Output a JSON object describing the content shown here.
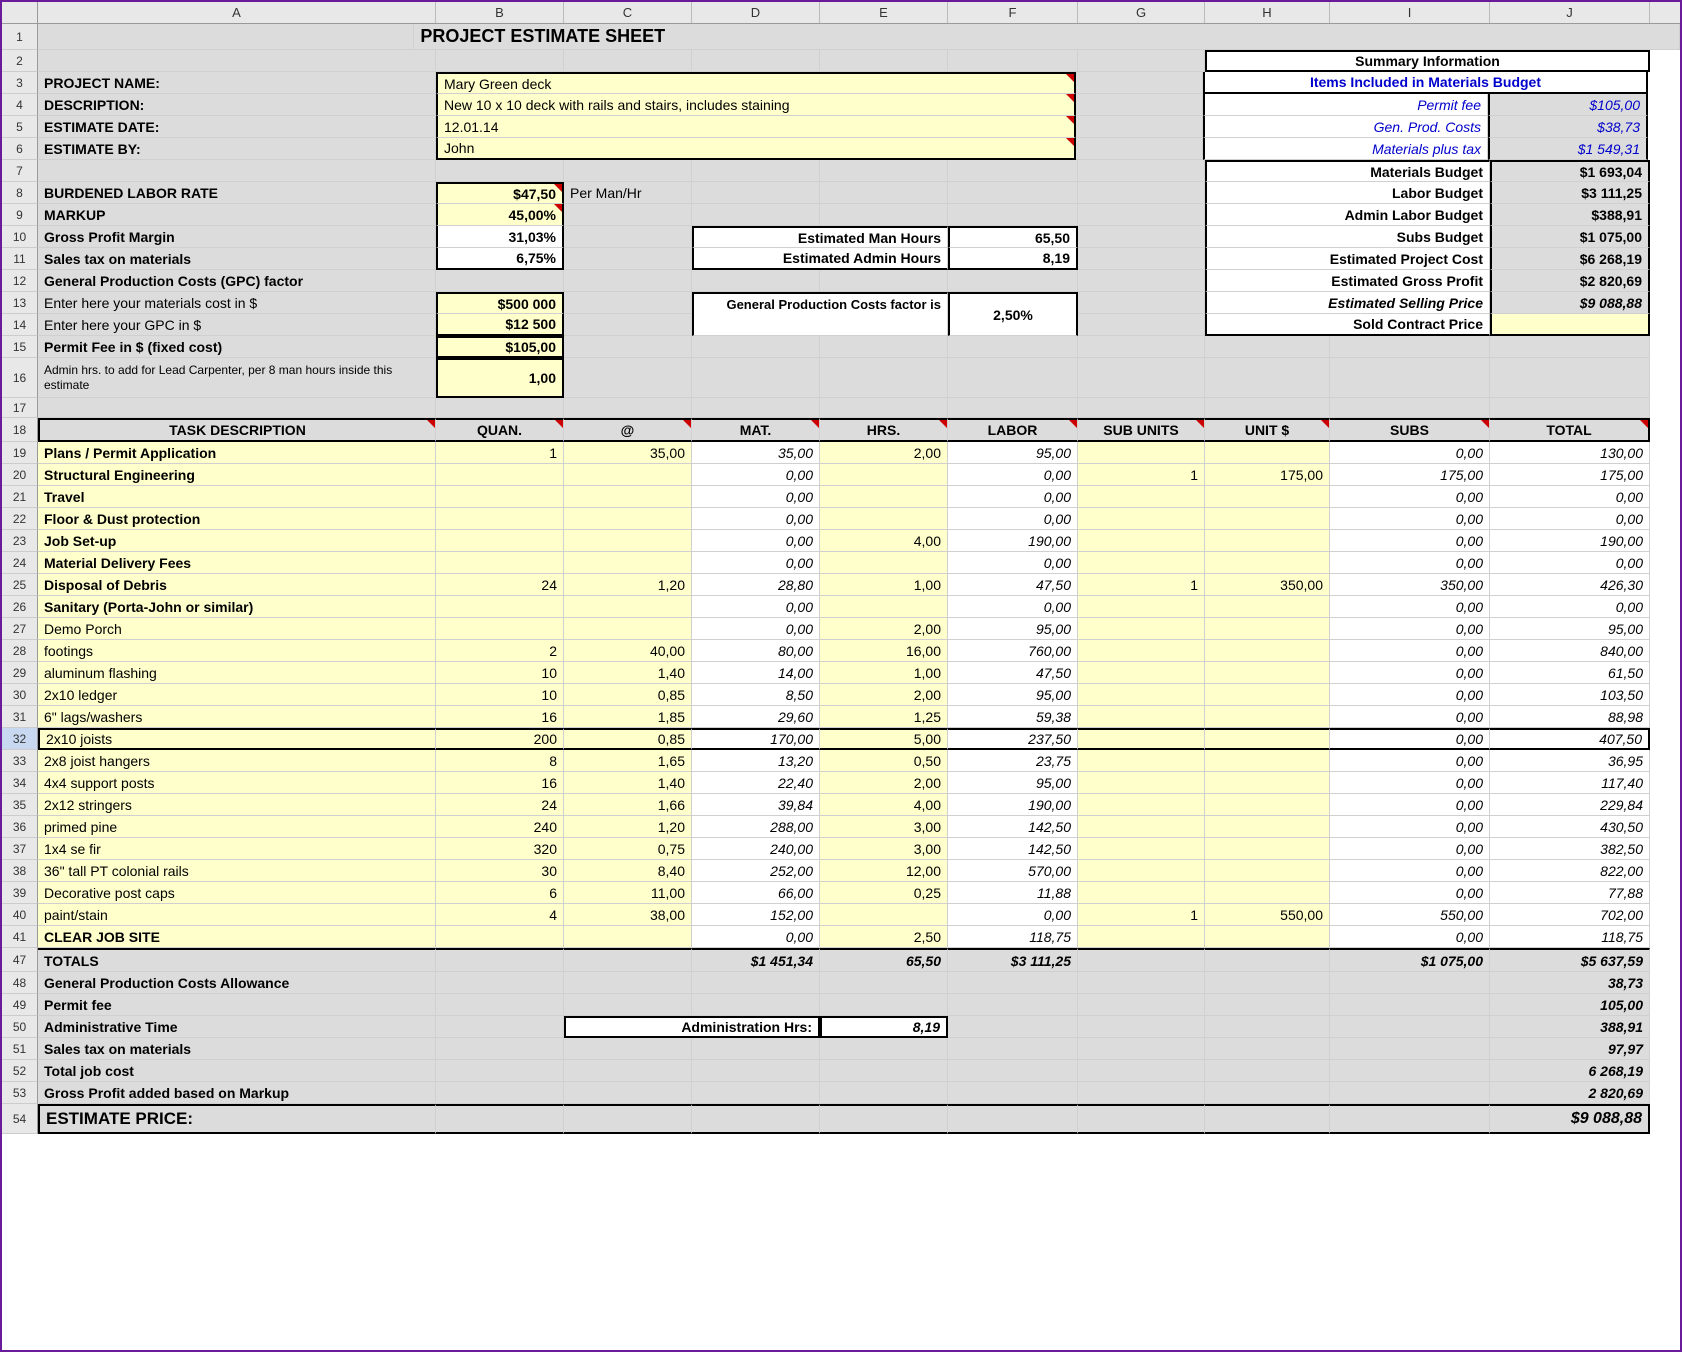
{
  "columns": [
    "A",
    "B",
    "C",
    "D",
    "E",
    "F",
    "G",
    "H",
    "I",
    "J"
  ],
  "col_widths": {
    "rownum": 36,
    "A": 398,
    "B": 128,
    "C": 128,
    "D": 128,
    "E": 128,
    "F": 130,
    "G": 127,
    "H": 125,
    "I": 160,
    "J": 160
  },
  "title": "PROJECT ESTIMATE SHEET",
  "header": {
    "project_name_label": "PROJECT NAME:",
    "project_name": "Mary Green deck",
    "description_label": "DESCRIPTION:",
    "description": "New 10 x 10 deck with rails and stairs, includes staining",
    "estimate_date_label": "ESTIMATE DATE:",
    "estimate_date": "12.01.14",
    "estimate_by_label": "ESTIMATE BY:",
    "estimate_by": "John"
  },
  "rates": {
    "burdened_label": "BURDENED LABOR RATE",
    "burdened": "$47,50",
    "burdened_unit": "Per Man/Hr",
    "markup_label": "MARKUP",
    "markup": "45,00%",
    "gpm_label": "Gross Profit Margin",
    "gpm": "31,03%",
    "salestax_label": "Sales tax on materials",
    "salestax": "6,75%",
    "gpc_factor_label": "General Production Costs (GPC) factor",
    "mat_cost_label": "Enter here your materials cost in $",
    "mat_cost": "$500 000",
    "gpc_label": "Enter here your GPC in $",
    "gpc": "$12 500",
    "permit_label": "Permit Fee in $ (fixed cost)",
    "permit": "$105,00",
    "admin_label": "Admin hrs. to add for Lead Carpenter, per 8 man hours inside this estimate",
    "admin": "1,00"
  },
  "right_box": {
    "man_hours_label": "Estimated Man Hours",
    "man_hours": "65,50",
    "admin_hours_label": "Estimated Admin Hours",
    "admin_hours": "8,19",
    "gpc_factor_label": "General Production Costs factor is",
    "gpc_factor": "2,50%"
  },
  "summary": {
    "title": "Summary Information",
    "subtitle": "Items Included in Materials Budget",
    "rows": [
      {
        "label": "Permit fee",
        "value": "$105,00",
        "blue": true,
        "italic": true
      },
      {
        "label": "Gen. Prod. Costs",
        "value": "$38,73",
        "blue": true,
        "italic": true
      },
      {
        "label": "Materials plus tax",
        "value": "$1 549,31",
        "blue": true,
        "italic": true
      },
      {
        "label": "Materials Budget",
        "value": "$1 693,04",
        "bold": true
      },
      {
        "label": "Labor Budget",
        "value": "$3 111,25",
        "bold": true
      },
      {
        "label": "Admin Labor  Budget",
        "value": "$388,91",
        "bold": true
      },
      {
        "label": "Subs Budget",
        "value": "$1 075,00",
        "bold": true
      },
      {
        "label": "Estimated Project Cost",
        "value": "$6 268,19",
        "bold": true
      },
      {
        "label": "Estimated Gross Profit",
        "value": "$2 820,69",
        "bold": true
      },
      {
        "label": "Estimated Selling Price",
        "value": "$9 088,88",
        "bold": true,
        "italic": true
      },
      {
        "label": "Sold Contract Price",
        "value": "",
        "bold": true
      }
    ]
  },
  "task_header": [
    "TASK DESCRIPTION",
    "QUAN.",
    "@",
    "MAT.",
    "HRS.",
    "LABOR",
    "SUB UNITS",
    "UNIT $",
    "SUBS",
    "TOTAL"
  ],
  "tasks": [
    {
      "n": 19,
      "desc": "Plans / Permit Application",
      "quan": "1",
      "at": "35,00",
      "mat": "35,00",
      "hrs": "2,00",
      "labor": "95,00",
      "sunits": "",
      "unit": "",
      "subs": "0,00",
      "total": "130,00",
      "bold": true
    },
    {
      "n": 20,
      "desc": "Structural Engineering",
      "quan": "",
      "at": "",
      "mat": "0,00",
      "hrs": "",
      "labor": "0,00",
      "sunits": "1",
      "unit": "175,00",
      "subs": "175,00",
      "total": "175,00",
      "bold": true
    },
    {
      "n": 21,
      "desc": "Travel",
      "quan": "",
      "at": "",
      "mat": "0,00",
      "hrs": "",
      "labor": "0,00",
      "sunits": "",
      "unit": "",
      "subs": "0,00",
      "total": "0,00",
      "bold": true
    },
    {
      "n": 22,
      "desc": "Floor & Dust protection",
      "quan": "",
      "at": "",
      "mat": "0,00",
      "hrs": "",
      "labor": "0,00",
      "sunits": "",
      "unit": "",
      "subs": "0,00",
      "total": "0,00",
      "bold": true
    },
    {
      "n": 23,
      "desc": "Job Set-up",
      "quan": "",
      "at": "",
      "mat": "0,00",
      "hrs": "4,00",
      "labor": "190,00",
      "sunits": "",
      "unit": "",
      "subs": "0,00",
      "total": "190,00",
      "bold": true
    },
    {
      "n": 24,
      "desc": "Material Delivery Fees",
      "quan": "",
      "at": "",
      "mat": "0,00",
      "hrs": "",
      "labor": "0,00",
      "sunits": "",
      "unit": "",
      "subs": "0,00",
      "total": "0,00",
      "bold": true
    },
    {
      "n": 25,
      "desc": "Disposal of Debris",
      "quan": "24",
      "at": "1,20",
      "mat": "28,80",
      "hrs": "1,00",
      "labor": "47,50",
      "sunits": "1",
      "unit": "350,00",
      "subs": "350,00",
      "total": "426,30",
      "bold": true
    },
    {
      "n": 26,
      "desc": "Sanitary (Porta-John or similar)",
      "quan": "",
      "at": "",
      "mat": "0,00",
      "hrs": "",
      "labor": "0,00",
      "sunits": "",
      "unit": "",
      "subs": "0,00",
      "total": "0,00",
      "bold": true
    },
    {
      "n": 27,
      "desc": "Demo Porch",
      "quan": "",
      "at": "",
      "mat": "0,00",
      "hrs": "2,00",
      "labor": "95,00",
      "sunits": "",
      "unit": "",
      "subs": "0,00",
      "total": "95,00"
    },
    {
      "n": 28,
      "desc": "footings",
      "quan": "2",
      "at": "40,00",
      "mat": "80,00",
      "hrs": "16,00",
      "labor": "760,00",
      "sunits": "",
      "unit": "",
      "subs": "0,00",
      "total": "840,00"
    },
    {
      "n": 29,
      "desc": "aluminum flashing",
      "quan": "10",
      "at": "1,40",
      "mat": "14,00",
      "hrs": "1,00",
      "labor": "47,50",
      "sunits": "",
      "unit": "",
      "subs": "0,00",
      "total": "61,50"
    },
    {
      "n": 30,
      "desc": "2x10 ledger",
      "quan": "10",
      "at": "0,85",
      "mat": "8,50",
      "hrs": "2,00",
      "labor": "95,00",
      "sunits": "",
      "unit": "",
      "subs": "0,00",
      "total": "103,50"
    },
    {
      "n": 31,
      "desc": "6\" lags/washers",
      "quan": "16",
      "at": "1,85",
      "mat": "29,60",
      "hrs": "1,25",
      "labor": "59,38",
      "sunits": "",
      "unit": "",
      "subs": "0,00",
      "total": "88,98"
    },
    {
      "n": 32,
      "desc": "2x10 joists",
      "quan": "200",
      "at": "0,85",
      "mat": "170,00",
      "hrs": "5,00",
      "labor": "237,50",
      "sunits": "",
      "unit": "",
      "subs": "0,00",
      "total": "407,50",
      "selected": true
    },
    {
      "n": 33,
      "desc": "2x8 joist hangers",
      "quan": "8",
      "at": "1,65",
      "mat": "13,20",
      "hrs": "0,50",
      "labor": "23,75",
      "sunits": "",
      "unit": "",
      "subs": "0,00",
      "total": "36,95"
    },
    {
      "n": 34,
      "desc": "4x4 support posts",
      "quan": "16",
      "at": "1,40",
      "mat": "22,40",
      "hrs": "2,00",
      "labor": "95,00",
      "sunits": "",
      "unit": "",
      "subs": "0,00",
      "total": "117,40"
    },
    {
      "n": 35,
      "desc": "2x12 stringers",
      "quan": "24",
      "at": "1,66",
      "mat": "39,84",
      "hrs": "4,00",
      "labor": "190,00",
      "sunits": "",
      "unit": "",
      "subs": "0,00",
      "total": "229,84"
    },
    {
      "n": 36,
      "desc": "primed pine",
      "quan": "240",
      "at": "1,20",
      "mat": "288,00",
      "hrs": "3,00",
      "labor": "142,50",
      "sunits": "",
      "unit": "",
      "subs": "0,00",
      "total": "430,50"
    },
    {
      "n": 37,
      "desc": "1x4 se fir",
      "quan": "320",
      "at": "0,75",
      "mat": "240,00",
      "hrs": "3,00",
      "labor": "142,50",
      "sunits": "",
      "unit": "",
      "subs": "0,00",
      "total": "382,50"
    },
    {
      "n": 38,
      "desc": "36\" tall PT colonial rails",
      "quan": "30",
      "at": "8,40",
      "mat": "252,00",
      "hrs": "12,00",
      "labor": "570,00",
      "sunits": "",
      "unit": "",
      "subs": "0,00",
      "total": "822,00"
    },
    {
      "n": 39,
      "desc": "Decorative post caps",
      "quan": "6",
      "at": "11,00",
      "mat": "66,00",
      "hrs": "0,25",
      "labor": "11,88",
      "sunits": "",
      "unit": "",
      "subs": "0,00",
      "total": "77,88"
    },
    {
      "n": 40,
      "desc": "paint/stain",
      "quan": "4",
      "at": "38,00",
      "mat": "152,00",
      "hrs": "",
      "labor": "0,00",
      "sunits": "1",
      "unit": "550,00",
      "subs": "550,00",
      "total": "702,00"
    },
    {
      "n": 41,
      "desc": "CLEAR JOB SITE",
      "quan": "",
      "at": "",
      "mat": "0,00",
      "hrs": "2,50",
      "labor": "118,75",
      "sunits": "",
      "unit": "",
      "subs": "0,00",
      "total": "118,75",
      "bold": true
    }
  ],
  "totals": {
    "n": 47,
    "label": "TOTALS",
    "mat": "$1 451,34",
    "hrs": "65,50",
    "labor": "$3 111,25",
    "subs": "$1 075,00",
    "total": "$5 637,59"
  },
  "footer_rows": [
    {
      "n": 48,
      "label": "General Production Costs Allowance",
      "total": "38,73"
    },
    {
      "n": 49,
      "label": "Permit fee",
      "total": "105,00"
    },
    {
      "n": 50,
      "label": "Administrative Time",
      "admin_label": "Administration Hrs:",
      "admin_val": "8,19",
      "total": "388,91"
    },
    {
      "n": 51,
      "label": "Sales tax on materials",
      "total": "97,97"
    },
    {
      "n": 52,
      "label": "Total job cost",
      "total": "6 268,19"
    },
    {
      "n": 53,
      "label": "Gross Profit added based on Markup",
      "total": "2 820,69"
    }
  ],
  "estimate_price": {
    "n": 54,
    "label": "ESTIMATE PRICE:",
    "value": "$9 088,88"
  },
  "colors": {
    "gray": "#dcdcdc",
    "yellow": "#ffffcc",
    "border": "#d0d0d0",
    "thick": "#000000",
    "blue": "#0000cc",
    "selection": "#6a1b9a"
  }
}
